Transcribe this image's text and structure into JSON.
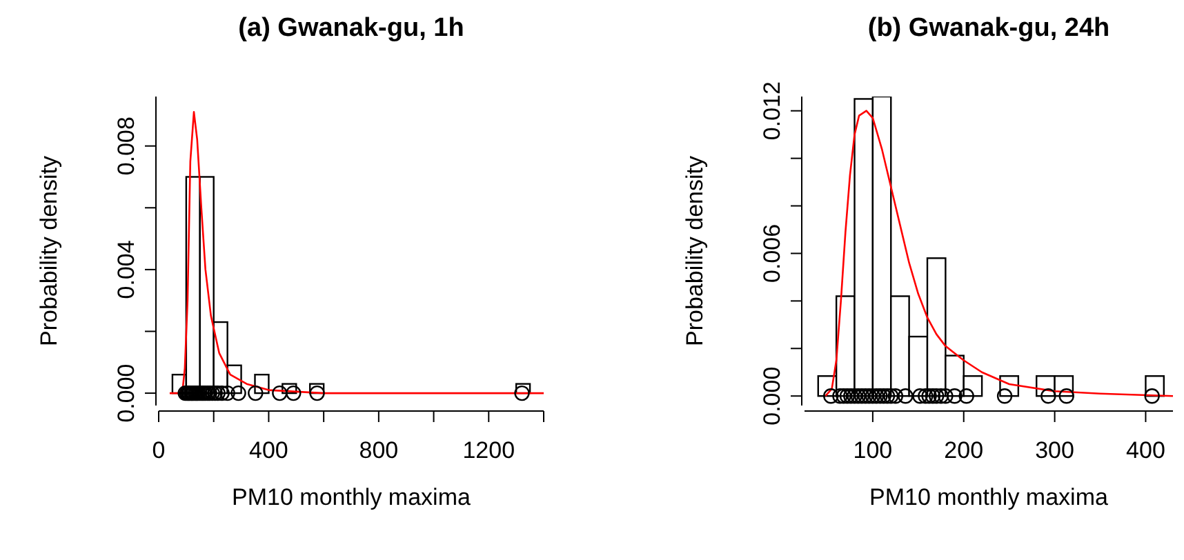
{
  "chart_data": [
    {
      "type": "histogram",
      "title": "(a) Gwanak-gu, 1h",
      "xlabel": "PM10 monthly maxima",
      "ylabel": "Probability density",
      "color": "#ffffff",
      "bins": [
        50,
        100,
        150,
        200,
        250,
        300,
        350,
        400,
        450,
        500,
        550,
        600,
        650,
        700,
        750,
        800,
        850,
        900,
        950,
        1000,
        1050,
        1100,
        1150,
        1200,
        1250,
        1300,
        1350
      ],
      "values": [
        0.0006,
        0.007,
        0.007,
        0.0023,
        0.0009,
        0,
        0.0006,
        0,
        0.0003,
        0,
        0.0003,
        0,
        0,
        0,
        0,
        0,
        0,
        0,
        0,
        0,
        0,
        0,
        0,
        0,
        0,
        0.0003
      ],
      "series": [
        {
          "type": "line",
          "color": "#ff0000",
          "x": [
            40,
            80,
            88,
            95,
            105,
            115,
            128,
            140,
            155,
            170,
            190,
            220,
            260,
            320,
            400,
            600,
            1000,
            1400
          ],
          "values": [
            0,
            0,
            0.0002,
            0.0008,
            0.003,
            0.0075,
            0.0091,
            0.0082,
            0.006,
            0.004,
            0.0025,
            0.0013,
            0.0006,
            0.0003,
            0.0001,
            0,
            0,
            0
          ]
        },
        {
          "type": "scatter",
          "color": "#000000",
          "marker": "circle",
          "x": [
            97,
            103,
            108,
            112,
            118,
            122,
            127,
            133,
            138,
            143,
            150,
            157,
            163,
            170,
            178,
            185,
            195,
            205,
            215,
            230,
            250,
            290,
            352,
            440,
            490,
            576,
            1321
          ],
          "values": [
            0,
            0,
            0,
            0,
            0,
            0,
            0,
            0,
            0,
            0,
            0,
            0,
            0,
            0,
            0,
            0,
            0,
            0,
            0,
            0,
            0,
            0,
            0,
            0,
            0,
            0,
            0
          ]
        }
      ],
      "xlim": [
        0,
        1400
      ],
      "xticks": [
        0,
        {
          "value": 200,
          "label": null
        },
        400,
        {
          "value": 600,
          "label": null
        },
        800,
        {
          "value": 1000,
          "label": null
        },
        1200,
        {
          "value": 1400,
          "label": null
        }
      ],
      "ylim": [
        -0.0004,
        0.0096
      ],
      "yticks": [
        {
          "value": 0,
          "label": "0.000"
        },
        {
          "value": 0.002,
          "label": null
        },
        {
          "value": 0.004,
          "label": "0.004"
        },
        {
          "value": 0.006,
          "label": null
        },
        {
          "value": 0.008,
          "label": "0.008"
        }
      ]
    },
    {
      "type": "histogram",
      "title": "(b) Gwanak-gu, 24h",
      "xlabel": "PM10 monthly maxima",
      "ylabel": "Probability density",
      "color": "#ffffff",
      "bins": [
        40,
        60,
        80,
        100,
        120,
        140,
        160,
        180,
        200,
        220,
        240,
        260,
        280,
        300,
        320,
        340,
        360,
        380,
        400,
        420
      ],
      "values": [
        0.00084,
        0.0042,
        0.0125,
        0.0126,
        0.0042,
        0.0025,
        0.0058,
        0.0017,
        0.00084,
        0,
        0.00084,
        0,
        0.00084,
        0.00084,
        0,
        0,
        0,
        0,
        0.00084
      ],
      "series": [
        {
          "type": "line",
          "color": "#ff0000",
          "x": [
            48,
            55,
            60,
            65,
            70,
            75,
            80,
            85,
            93,
            100,
            110,
            120,
            130,
            140,
            150,
            160,
            170,
            180,
            200,
            220,
            250,
            300,
            350,
            430
          ],
          "values": [
            0,
            0.0003,
            0.0015,
            0.004,
            0.0069,
            0.0093,
            0.011,
            0.0118,
            0.012,
            0.0117,
            0.0104,
            0.0088,
            0.0072,
            0.0056,
            0.0043,
            0.0033,
            0.0026,
            0.0021,
            0.0015,
            0.001,
            0.0005,
            0.0002,
            0.0001,
            0
          ]
        },
        {
          "type": "scatter",
          "color": "#000000",
          "marker": "circle",
          "x": [
            54,
            64,
            68,
            72,
            76,
            80,
            84,
            88,
            92,
            96,
            100,
            104,
            108,
            112,
            116,
            120,
            125,
            136,
            152,
            158,
            162,
            166,
            170,
            175,
            180,
            190,
            203,
            245,
            293,
            313,
            407
          ],
          "values": [
            0,
            0,
            0,
            0,
            0,
            0,
            0,
            0,
            0,
            0,
            0,
            0,
            0,
            0,
            0,
            0,
            0,
            0,
            0,
            0,
            0,
            0,
            0,
            0,
            0,
            0,
            0,
            0,
            0,
            0,
            0
          ]
        }
      ],
      "xlim": [
        25,
        430
      ],
      "xticks": [
        100,
        200,
        300,
        400
      ],
      "ylim": [
        -0.0004,
        0.0126
      ],
      "yticks": [
        {
          "value": 0,
          "label": "0.000"
        },
        {
          "value": 0.002,
          "label": null
        },
        {
          "value": 0.004,
          "label": null
        },
        {
          "value": 0.006,
          "label": "0.006"
        },
        {
          "value": 0.008,
          "label": null
        },
        {
          "value": 0.01,
          "label": null
        },
        {
          "value": 0.012,
          "label": "0.012"
        }
      ]
    }
  ]
}
